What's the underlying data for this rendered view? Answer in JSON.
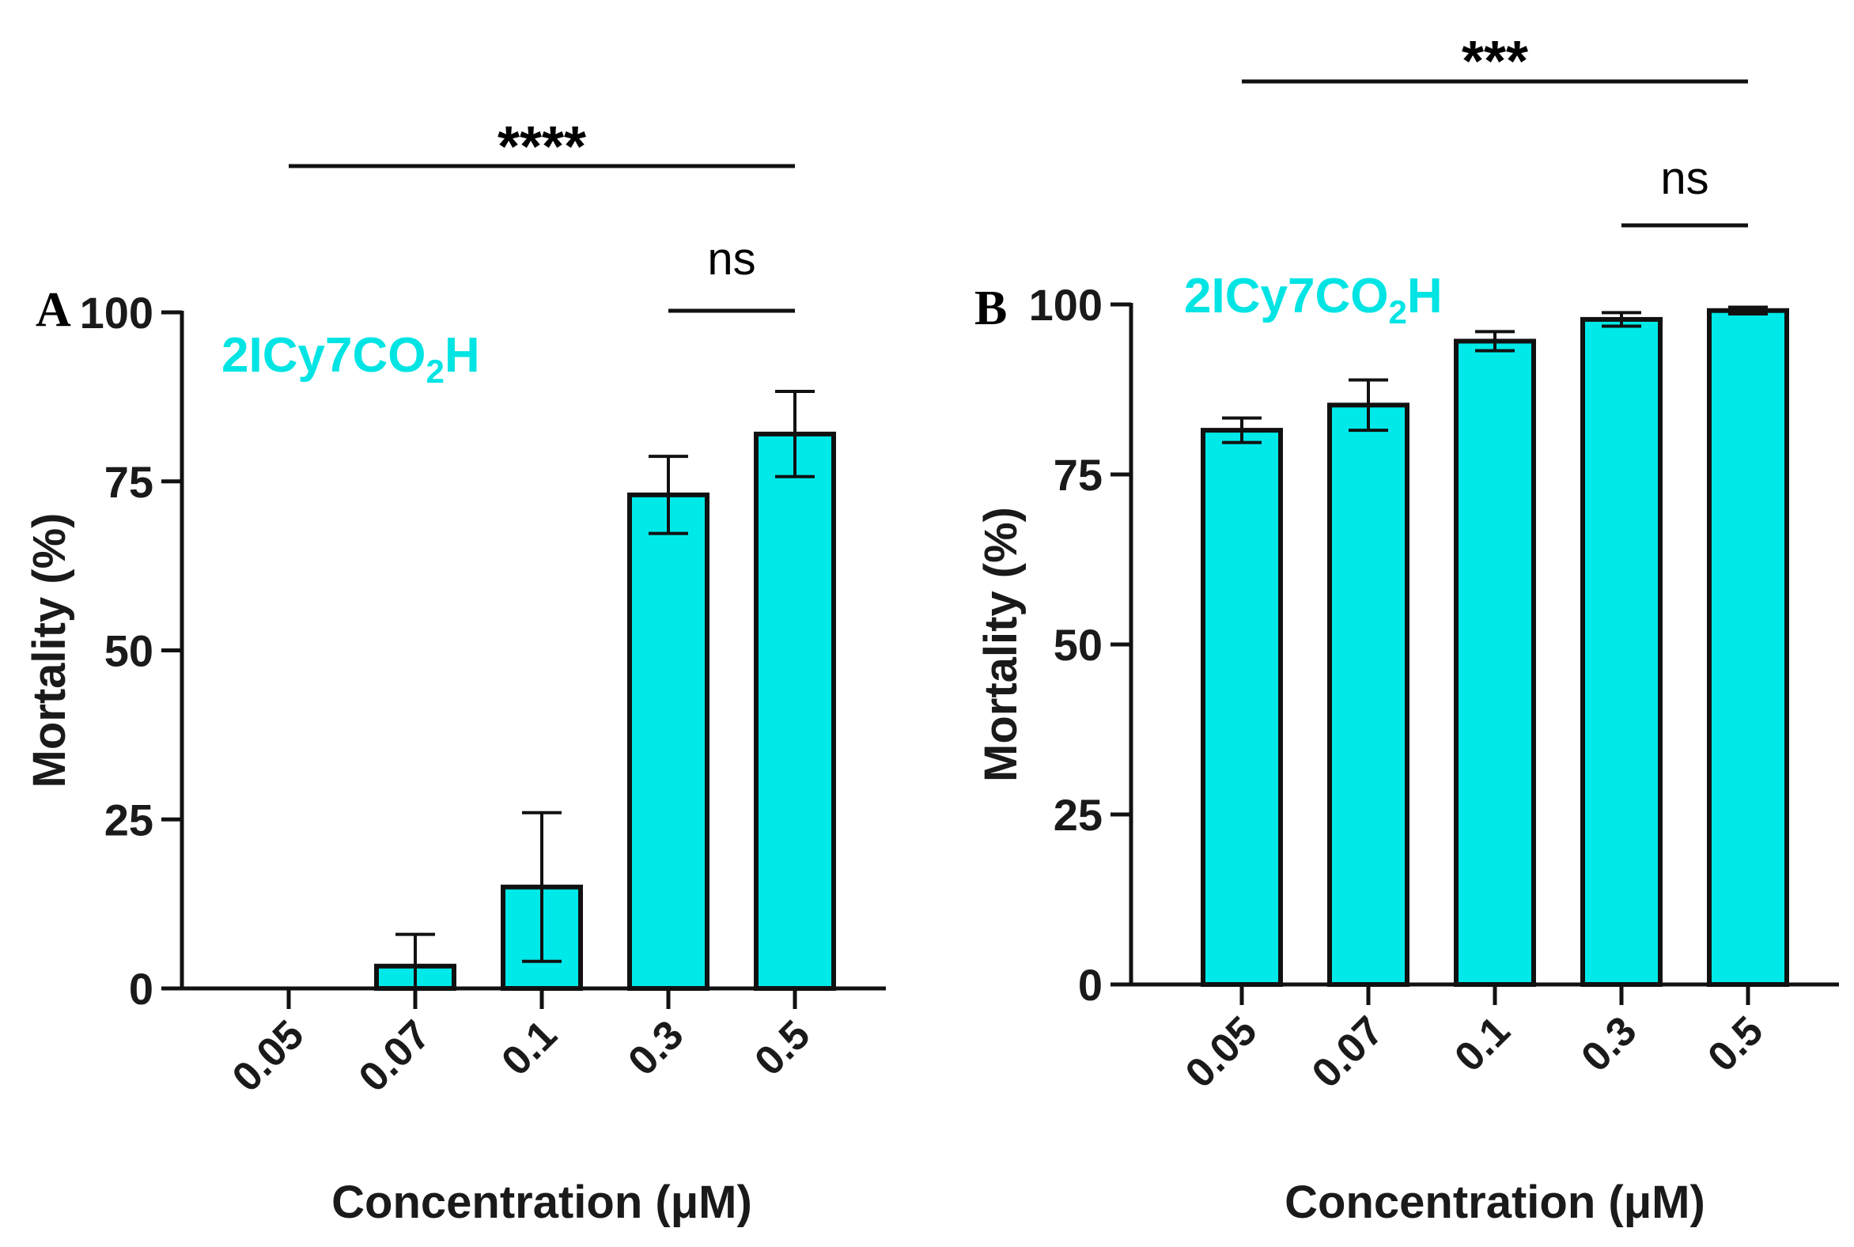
{
  "chart_data": [
    {
      "type": "bar",
      "panel": "A",
      "label": "2ICy7CO2H",
      "label_main": "2ICy7CO",
      "label_sub": "2",
      "label_end": "H",
      "categories": [
        "0.05",
        "0.07",
        "0.1",
        "0.3",
        "0.5"
      ],
      "values": [
        0,
        3.3,
        15,
        73,
        82
      ],
      "errors": [
        0,
        4.7,
        11,
        5.7,
        6.3
      ],
      "ylim": [
        0,
        100
      ],
      "yticks": [
        "0",
        "25",
        "50",
        "75",
        "100"
      ],
      "ylabel": "Mortality (%)",
      "xlabel": "Concentration (μM)",
      "bar_color": "#00e9e9",
      "label_color": "#00e4e4",
      "significance": [
        {
          "from": 0,
          "to": 4,
          "text": "****"
        },
        {
          "from": 3,
          "to": 4,
          "text": "ns"
        }
      ]
    },
    {
      "type": "bar",
      "panel": "B",
      "label": "2ICy7CO2H",
      "label_main": "2ICy7CO",
      "label_sub": "2",
      "label_end": "H",
      "categories": [
        "0.05",
        "0.07",
        "0.1",
        "0.3",
        "0.5"
      ],
      "values": [
        81.5,
        85.2,
        94.6,
        97.8,
        99.1
      ],
      "errors": [
        1.8,
        3.7,
        1.4,
        1.0,
        0.5
      ],
      "ylim": [
        0,
        100
      ],
      "yticks": [
        "0",
        "25",
        "50",
        "75",
        "100"
      ],
      "ylabel": "Mortality (%)",
      "xlabel": "Concentration (μM)",
      "bar_color": "#00e9e9",
      "label_color": "#00e4e4",
      "significance": [
        {
          "from": 0,
          "to": 4,
          "text": "***"
        },
        {
          "from": 3,
          "to": 4,
          "text": "ns"
        }
      ]
    }
  ]
}
